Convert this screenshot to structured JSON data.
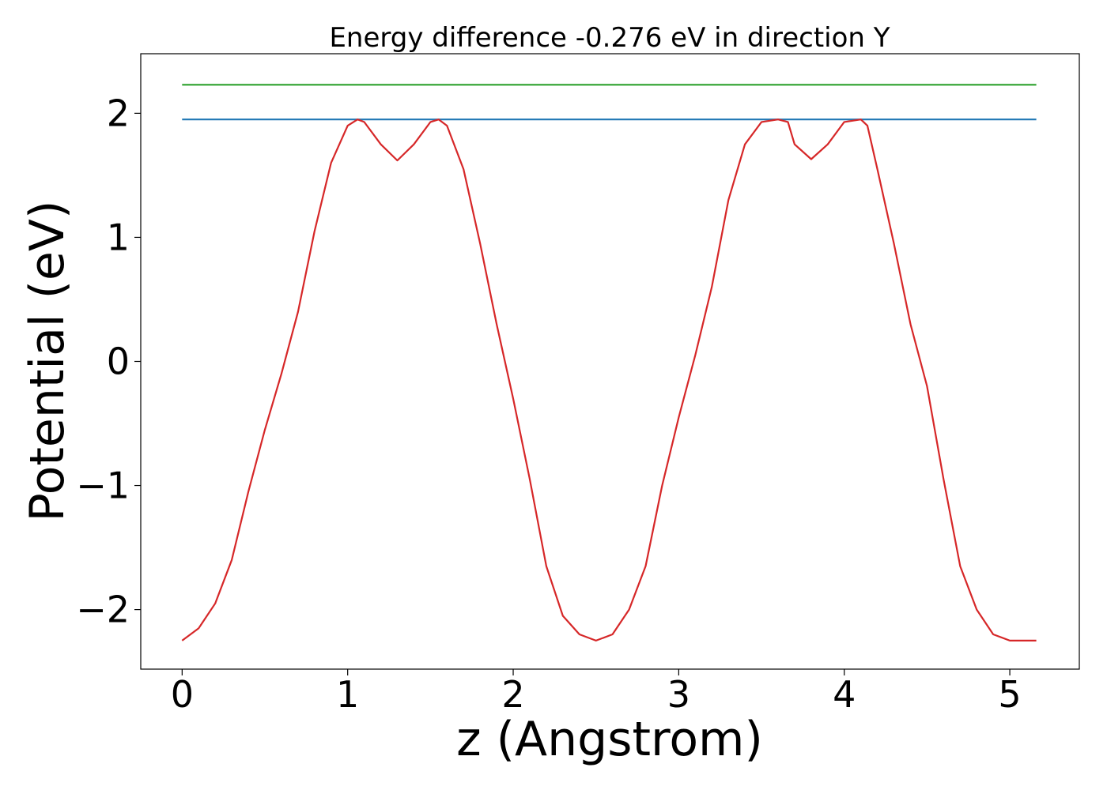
{
  "chart_data": {
    "type": "line",
    "title": "Energy difference -0.276 eV in direction Y",
    "xlabel": "z (Angstrom)",
    "ylabel": "Potential (eV)",
    "xlim": [
      -0.25,
      5.42
    ],
    "ylim": [
      -2.48,
      2.48
    ],
    "x_ticks": [
      0,
      1,
      2,
      3,
      4,
      5
    ],
    "x_tick_labels": [
      "0",
      "1",
      "2",
      "3",
      "4",
      "5"
    ],
    "y_ticks": [
      -2,
      -1,
      0,
      1,
      2
    ],
    "y_tick_labels": [
      "−2",
      "−1",
      "0",
      "1",
      "2"
    ],
    "grid": false,
    "series": [
      {
        "color": "#d62728",
        "x": [
          0,
          0.1,
          0.2,
          0.3,
          0.4,
          0.5,
          0.6,
          0.7,
          0.8,
          0.9,
          1.0,
          1.06,
          1.1,
          1.2,
          1.3,
          1.4,
          1.5,
          1.55,
          1.6,
          1.7,
          1.8,
          1.9,
          2.0,
          2.1,
          2.2,
          2.3,
          2.4,
          2.5,
          2.6,
          2.7,
          2.8,
          2.9,
          3.0,
          3.1,
          3.2,
          3.3,
          3.4,
          3.5,
          3.6,
          3.66,
          3.7,
          3.8,
          3.9,
          4.0,
          4.1,
          4.14,
          4.2,
          4.3,
          4.4,
          4.5,
          4.6,
          4.7,
          4.8,
          4.9,
          5.0,
          5.1,
          5.16
        ],
        "values": [
          -2.25,
          -2.15,
          -1.95,
          -1.6,
          -1.05,
          -0.55,
          -0.1,
          0.4,
          1.05,
          1.6,
          1.9,
          1.95,
          1.93,
          1.75,
          1.62,
          1.75,
          1.93,
          1.95,
          1.9,
          1.55,
          0.95,
          0.3,
          -0.3,
          -0.95,
          -1.65,
          -2.05,
          -2.2,
          -2.25,
          -2.2,
          -2.0,
          -1.65,
          -1.0,
          -0.45,
          0.05,
          0.6,
          1.3,
          1.75,
          1.93,
          1.95,
          1.93,
          1.75,
          1.63,
          1.75,
          1.93,
          1.95,
          1.9,
          1.55,
          0.95,
          0.3,
          -0.2,
          -0.95,
          -1.65,
          -2.0,
          -2.2,
          -2.25,
          -2.25,
          -2.25
        ]
      },
      {
        "color": "#1f77b4",
        "x": [
          0,
          5.16
        ],
        "values": [
          1.95,
          1.95
        ]
      },
      {
        "color": "#2ca02c",
        "x": [
          0,
          5.16
        ],
        "values": [
          2.23,
          2.23
        ]
      }
    ]
  }
}
